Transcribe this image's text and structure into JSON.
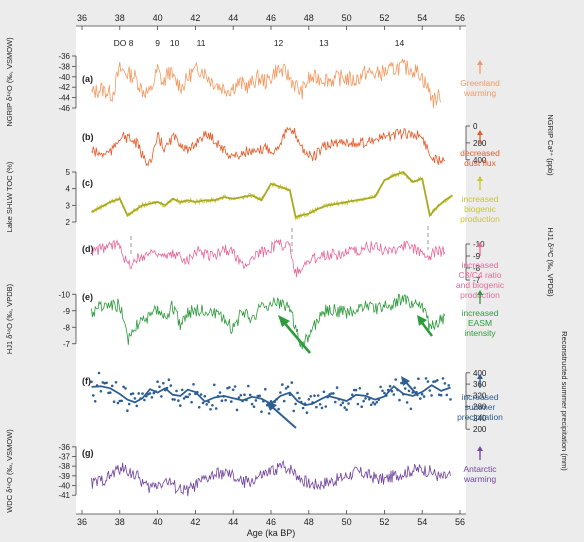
{
  "chart_data": {
    "type": "line",
    "xlabel": "Age (ka BP)",
    "xlim": [
      36,
      56
    ],
    "x_ticks": [
      36,
      38,
      40,
      42,
      44,
      46,
      48,
      50,
      52,
      54,
      56
    ],
    "do_events": [
      {
        "label": "DO 8",
        "age": 38.2
      },
      {
        "label": "9",
        "age": 40.0
      },
      {
        "label": "10",
        "age": 40.9
      },
      {
        "label": "11",
        "age": 42.3
      },
      {
        "label": "12",
        "age": 46.4
      },
      {
        "label": "13",
        "age": 48.8
      },
      {
        "label": "14",
        "age": 52.8
      }
    ],
    "panels": [
      {
        "id": "a",
        "tag": "(a)",
        "color": "#f39a62",
        "ylabel": "NGRIP δ¹⁸O (‰, VSMOW)",
        "axis_side": "left",
        "ylim": [
          -46,
          -36
        ],
        "yticks": [
          -36,
          -38,
          -40,
          -42,
          -44,
          -46
        ],
        "annotation": [
          "Greenland",
          "warming"
        ],
        "series": {
          "x": [
            36.5,
            37.0,
            37.6,
            38.0,
            38.3,
            38.8,
            39.2,
            39.6,
            40.0,
            40.3,
            40.6,
            40.9,
            41.3,
            41.8,
            42.3,
            42.8,
            43.3,
            43.8,
            44.3,
            44.8,
            45.3,
            45.8,
            46.3,
            46.8,
            47.2,
            47.6,
            48.0,
            48.6,
            49.2,
            49.8,
            50.4,
            51.0,
            51.6,
            52.2,
            52.8,
            53.4,
            53.9,
            54.3,
            54.6,
            55.0
          ],
          "y": [
            -43.2,
            -42.3,
            -43.4,
            -38.5,
            -39.2,
            -40.0,
            -42.6,
            -43.2,
            -38.6,
            -41.5,
            -38.8,
            -40.7,
            -41.9,
            -39.2,
            -38.4,
            -40.6,
            -41.9,
            -42.5,
            -41.2,
            -41.8,
            -40.2,
            -41.0,
            -38.6,
            -39.3,
            -41.2,
            -43.1,
            -40.4,
            -40.2,
            -40.6,
            -40.1,
            -40.8,
            -39.2,
            -39.5,
            -38.9,
            -38.1,
            -38.4,
            -39.4,
            -42.2,
            -44.6,
            -43.5
          ]
        }
      },
      {
        "id": "b",
        "tag": "(b)",
        "color": "#e55b2a",
        "ylabel": "NGRIP Ca²⁺ (ppb)",
        "axis_side": "right",
        "ylim": [
          0,
          450
        ],
        "yticks": [
          0,
          200,
          400
        ],
        "invert": true,
        "annotation": [
          "decreased",
          "dust flux"
        ],
        "series": {
          "x": [
            36.5,
            37.0,
            37.6,
            38.0,
            38.4,
            38.9,
            39.3,
            39.7,
            40.0,
            40.4,
            40.8,
            41.2,
            41.7,
            42.2,
            42.7,
            43.2,
            43.7,
            44.2,
            44.7,
            45.2,
            45.7,
            46.2,
            46.8,
            47.3,
            47.7,
            48.2,
            48.8,
            49.4,
            50.0,
            50.6,
            51.2,
            51.8,
            52.4,
            53.0,
            53.6,
            54.0,
            54.4,
            54.8,
            55.2
          ],
          "y": [
            290,
            340,
            300,
            120,
            140,
            210,
            400,
            420,
            120,
            280,
            130,
            200,
            310,
            140,
            100,
            210,
            330,
            360,
            300,
            330,
            250,
            300,
            60,
            90,
            280,
            380,
            250,
            200,
            180,
            220,
            170,
            150,
            110,
            90,
            100,
            130,
            340,
            410,
            360
          ]
        }
      },
      {
        "id": "c",
        "tag": "(c)",
        "color": "#c7c62e",
        "ylabel": "Lake SHLW TOC (%)",
        "axis_side": "left",
        "ylim": [
          2,
          5
        ],
        "yticks": [
          5,
          4,
          3,
          2
        ],
        "annotation": [
          "increased",
          "biogenic",
          "production"
        ],
        "series": {
          "x": [
            36.5,
            37.0,
            37.5,
            38.0,
            38.4,
            38.8,
            39.2,
            39.6,
            40.0,
            40.4,
            40.8,
            41.2,
            41.6,
            42.0,
            42.5,
            43.0,
            43.5,
            44.0,
            44.5,
            45.0,
            45.5,
            46.0,
            46.5,
            47.0,
            47.3,
            47.6,
            48.0,
            48.5,
            49.0,
            49.5,
            50.0,
            50.5,
            51.0,
            51.5,
            52.0,
            52.5,
            53.0,
            53.5,
            54.0,
            54.4,
            54.8,
            55.2,
            55.6
          ],
          "y": [
            2.6,
            2.9,
            3.2,
            3.4,
            2.4,
            2.7,
            3.0,
            3.1,
            3.2,
            3.0,
            3.4,
            3.2,
            3.3,
            3.2,
            3.3,
            3.3,
            3.5,
            3.4,
            3.5,
            3.6,
            3.3,
            4.3,
            4.1,
            3.9,
            2.3,
            2.4,
            2.5,
            2.8,
            3.0,
            3.1,
            3.2,
            3.3,
            3.4,
            3.5,
            4.5,
            4.8,
            5.0,
            4.4,
            4.6,
            2.4,
            2.9,
            3.3,
            3.6
          ]
        }
      },
      {
        "id": "d",
        "tag": "(d)",
        "color": "#e9699b",
        "ylabel": "HJ1 δ¹³C (‰, VPDB)",
        "axis_side": "right",
        "ylim": [
          -10.5,
          -6.5
        ],
        "yticks": [
          -10,
          -9,
          -8,
          -7
        ],
        "invert": true,
        "annotation": [
          "increased",
          "C3/C4 ratio",
          "and biogenic",
          "production"
        ],
        "series": {
          "x": [
            36.5,
            37.0,
            37.5,
            38.0,
            38.4,
            38.8,
            39.2,
            39.6,
            40.0,
            40.4,
            40.8,
            41.2,
            41.6,
            42.0,
            42.5,
            43.0,
            43.5,
            44.0,
            44.5,
            45.0,
            45.5,
            46.0,
            46.5,
            47.0,
            47.3,
            47.6,
            48.0,
            48.5,
            49.0,
            49.5,
            50.0,
            50.5,
            51.0,
            51.5,
            52.0,
            52.5,
            53.0,
            53.5,
            54.0,
            54.4,
            54.8,
            55.2
          ],
          "y": [
            -9.3,
            -9.6,
            -9.8,
            -10.1,
            -8.2,
            -8.6,
            -9.0,
            -9.3,
            -9.4,
            -8.8,
            -9.1,
            -9.0,
            -8.7,
            -9.5,
            -9.2,
            -9.0,
            -9.6,
            -9.3,
            -8.2,
            -8.8,
            -9.3,
            -9.7,
            -10.0,
            -9.8,
            -7.6,
            -8.0,
            -8.5,
            -9.0,
            -9.2,
            -9.1,
            -9.4,
            -9.3,
            -9.7,
            -9.8,
            -9.5,
            -9.6,
            -9.9,
            -9.6,
            -9.4,
            -8.9,
            -9.5,
            -9.3
          ]
        }
      },
      {
        "id": "e",
        "tag": "(e)",
        "color": "#2e9b3c",
        "ylabel": "HJ1 δ¹⁸O (‰, VPDB)",
        "axis_side": "left",
        "ylim": [
          -10.5,
          -6.5
        ],
        "yticks": [
          -10,
          -9,
          -8,
          -7
        ],
        "invert": true,
        "annotation": [
          "increased",
          "EASM",
          "intensity"
        ],
        "series": {
          "x": [
            36.5,
            37.0,
            37.5,
            38.0,
            38.4,
            38.8,
            39.2,
            39.6,
            40.0,
            40.4,
            40.8,
            41.2,
            41.6,
            42.0,
            42.5,
            43.0,
            43.5,
            44.0,
            44.5,
            45.0,
            45.5,
            46.0,
            46.5,
            47.0,
            47.3,
            47.6,
            48.0,
            48.5,
            49.0,
            49.5,
            50.0,
            50.5,
            51.0,
            51.5,
            52.0,
            52.5,
            53.0,
            53.5,
            54.0,
            54.4,
            54.8,
            55.2
          ],
          "y": [
            -8.9,
            -9.3,
            -9.2,
            -9.4,
            -7.2,
            -8.0,
            -8.7,
            -8.5,
            -9.2,
            -8.6,
            -9.3,
            -8.2,
            -8.9,
            -9.0,
            -9.1,
            -8.8,
            -8.4,
            -7.9,
            -9.0,
            -8.6,
            -9.2,
            -9.4,
            -9.5,
            -9.2,
            -8.0,
            -7.0,
            -7.3,
            -8.6,
            -9.1,
            -9.0,
            -8.9,
            -9.0,
            -9.3,
            -9.1,
            -9.2,
            -9.5,
            -9.7,
            -9.3,
            -9.4,
            -8.0,
            -8.3,
            -8.5
          ]
        }
      },
      {
        "id": "f",
        "tag": "(f)",
        "color": "#2d5f93",
        "ylabel": "Reconstructed summer precipitation (mm)",
        "axis_side": "right",
        "ylim": [
          190,
          410
        ],
        "yticks": [
          400,
          360,
          320,
          280,
          240,
          200
        ],
        "annotation": [
          "increased",
          "summer",
          "precipitation"
        ],
        "series": {
          "x": [
            36.5,
            37.0,
            37.5,
            38.0,
            38.4,
            38.8,
            39.2,
            39.6,
            40.0,
            40.4,
            40.8,
            41.2,
            41.6,
            42.0,
            42.5,
            43.0,
            43.5,
            44.0,
            44.5,
            45.0,
            45.5,
            46.0,
            46.5,
            47.0,
            47.4,
            47.8,
            48.2,
            48.6,
            49.0,
            49.5,
            50.0,
            50.5,
            51.0,
            51.5,
            52.0,
            52.5,
            53.0,
            53.5,
            54.0,
            54.5,
            55.0,
            55.5
          ],
          "y": [
            350,
            352,
            345,
            325,
            305,
            295,
            310,
            342,
            330,
            345,
            322,
            318,
            340,
            332,
            298,
            312,
            318,
            310,
            302,
            315,
            308,
            290,
            318,
            330,
            300,
            285,
            290,
            305,
            318,
            310,
            300,
            322,
            318,
            305,
            316,
            352,
            326,
            318,
            332,
            356,
            336,
            348
          ]
        }
      },
      {
        "id": "g",
        "tag": "(g)",
        "color": "#7344a0",
        "ylabel": "WDC δ¹⁸O (‰, VSMOW)",
        "axis_side": "left",
        "ylim": [
          -41.5,
          -35.5
        ],
        "yticks": [
          -36,
          -37,
          -38,
          -39,
          -40,
          -41
        ],
        "annotation": [
          "Antarctic",
          "warming"
        ],
        "series": {
          "x": [
            36.5,
            37.0,
            37.5,
            38.0,
            38.5,
            39.0,
            39.5,
            40.0,
            40.5,
            41.0,
            41.5,
            42.0,
            42.5,
            43.0,
            43.5,
            44.0,
            44.5,
            45.0,
            45.5,
            46.0,
            46.5,
            47.0,
            47.5,
            48.0,
            48.5,
            49.0,
            49.5,
            50.0,
            50.5,
            51.0,
            51.5,
            52.0,
            52.5,
            53.0,
            53.5,
            54.0,
            54.5,
            55.0,
            55.5
          ],
          "y": [
            -39.8,
            -39.5,
            -39.0,
            -38.2,
            -38.5,
            -39.2,
            -40.3,
            -39.8,
            -39.5,
            -40.2,
            -40.6,
            -40.0,
            -39.4,
            -38.9,
            -38.7,
            -39.1,
            -39.7,
            -39.5,
            -39.0,
            -38.6,
            -38.0,
            -38.2,
            -39.1,
            -39.8,
            -39.9,
            -39.6,
            -39.4,
            -39.0,
            -38.6,
            -38.8,
            -39.2,
            -39.4,
            -39.0,
            -38.7,
            -38.4,
            -38.3,
            -38.6,
            -39.2,
            -39.0
          ]
        }
      }
    ]
  }
}
